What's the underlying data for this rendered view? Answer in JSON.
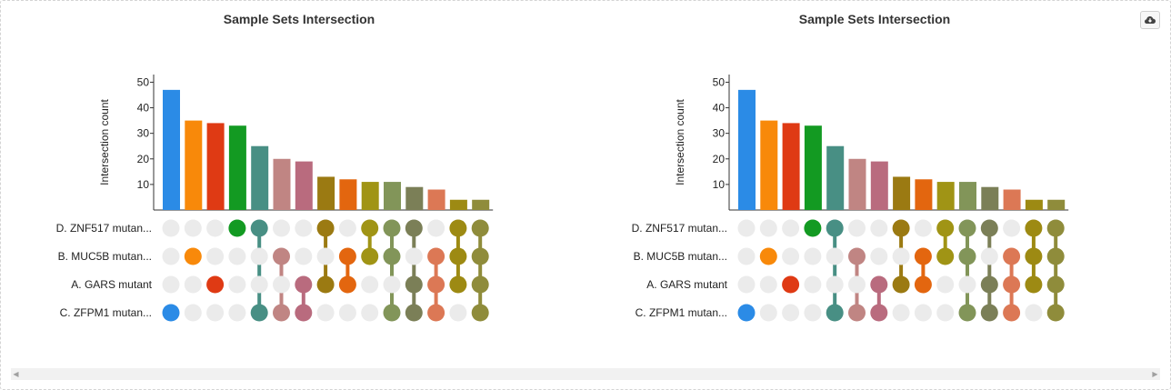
{
  "chart_data": [
    {
      "type": "bar",
      "title": "Sample Sets Intersection",
      "ylabel": "Intersection count",
      "ylim": [
        0,
        53
      ],
      "yticks": [
        10,
        20,
        30,
        40,
        50
      ],
      "sets": [
        "D. ZNF517 mutan...",
        "B. MUC5B mutan...",
        "A. GARS mutant",
        "C. ZFPM1 mutan..."
      ],
      "values": [
        47,
        35,
        34,
        33,
        25,
        20,
        19,
        13,
        12,
        11,
        11,
        9,
        8,
        4,
        4
      ],
      "colors": [
        "#2b8be6",
        "#f8890a",
        "#df3a14",
        "#139a22",
        "#488f84",
        "#c08583",
        "#b96b7e",
        "#9b7a12",
        "#e3660f",
        "#a09415",
        "#829559",
        "#7b7f57",
        "#dc7855",
        "#9d8a13",
        "#8f8c3b"
      ],
      "membership": [
        [
          0,
          0,
          0,
          1
        ],
        [
          0,
          1,
          0,
          0
        ],
        [
          0,
          0,
          1,
          0
        ],
        [
          1,
          0,
          0,
          0
        ],
        [
          1,
          0,
          0,
          1
        ],
        [
          0,
          1,
          0,
          1
        ],
        [
          0,
          0,
          1,
          1
        ],
        [
          1,
          0,
          1,
          0
        ],
        [
          0,
          1,
          1,
          0
        ],
        [
          1,
          1,
          0,
          0
        ],
        [
          1,
          1,
          0,
          1
        ],
        [
          1,
          0,
          1,
          1
        ],
        [
          0,
          1,
          1,
          1
        ],
        [
          1,
          1,
          1,
          0
        ],
        [
          1,
          1,
          1,
          1
        ]
      ]
    },
    {
      "type": "bar",
      "title": "Sample Sets Intersection",
      "ylabel": "Intersection count",
      "ylim": [
        0,
        53
      ],
      "yticks": [
        10,
        20,
        30,
        40,
        50
      ],
      "sets": [
        "D. ZNF517 mutan...",
        "B. MUC5B mutan...",
        "A. GARS mutant",
        "C. ZFPM1 mutan..."
      ],
      "values": [
        47,
        35,
        34,
        33,
        25,
        20,
        19,
        13,
        12,
        11,
        11,
        9,
        8,
        4,
        4
      ],
      "colors": [
        "#2b8be6",
        "#f8890a",
        "#df3a14",
        "#139a22",
        "#488f84",
        "#c08583",
        "#b96b7e",
        "#9b7a12",
        "#e3660f",
        "#a09415",
        "#829559",
        "#7b7f57",
        "#dc7855",
        "#9d8a13",
        "#8f8c3b"
      ],
      "membership": [
        [
          0,
          0,
          0,
          1
        ],
        [
          0,
          1,
          0,
          0
        ],
        [
          0,
          0,
          1,
          0
        ],
        [
          1,
          0,
          0,
          0
        ],
        [
          1,
          0,
          0,
          1
        ],
        [
          0,
          1,
          0,
          1
        ],
        [
          0,
          0,
          1,
          1
        ],
        [
          1,
          0,
          1,
          0
        ],
        [
          0,
          1,
          1,
          0
        ],
        [
          1,
          1,
          0,
          0
        ],
        [
          1,
          1,
          0,
          1
        ],
        [
          1,
          0,
          1,
          1
        ],
        [
          0,
          1,
          1,
          1
        ],
        [
          1,
          1,
          1,
          0
        ],
        [
          1,
          1,
          1,
          1
        ]
      ]
    }
  ],
  "toolbar": {
    "export_icon": "cloud-download-icon"
  },
  "scrollbar": {
    "left_icon": "caret-left-icon",
    "right_icon": "caret-right-icon"
  },
  "empty_dot_color": "#ebebeb"
}
